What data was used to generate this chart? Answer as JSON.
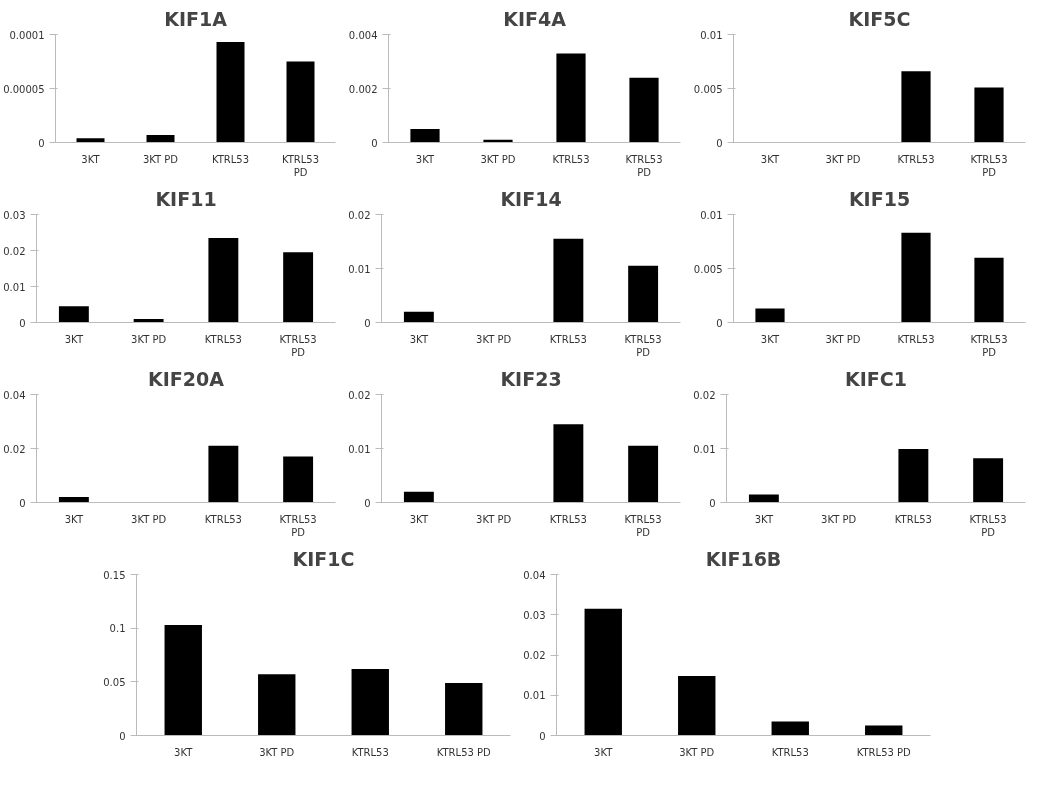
{
  "chart_data": [
    {
      "type": "bar",
      "title": "KIF1A",
      "categories": [
        "3KT",
        "3KT PD",
        "KTRL53",
        "KTRL53 PD"
      ],
      "values": [
        4e-06,
        7e-06,
        9.3e-05,
        7.5e-05
      ],
      "color": "#000000",
      "ylim": [
        0,
        0.0001
      ],
      "yticks": [
        0,
        {
          "value": 5e-05,
          "label": "0.00005"
        },
        0.0001
      ]
    },
    {
      "type": "bar",
      "title": "KIF4A",
      "categories": [
        "3KT",
        "3KT PD",
        "KTRL53",
        "KTRL53 PD"
      ],
      "values": [
        0.0005,
        0.0001,
        0.0033,
        0.0024
      ],
      "color": "#000000",
      "ylim": [
        0,
        0.004
      ],
      "yticks": [
        0,
        0.002,
        0.004
      ]
    },
    {
      "type": "bar",
      "title": "KIF5C",
      "categories": [
        "3KT",
        "3KT PD",
        "KTRL53",
        "KTRL53 PD"
      ],
      "values": [
        0,
        0,
        0.0066,
        0.0051
      ],
      "color": "#000000",
      "ylim": [
        0,
        0.01
      ],
      "yticks": [
        0,
        0.005,
        0.01
      ]
    },
    {
      "type": "bar",
      "title": "KIF11",
      "categories": [
        "3KT",
        "3KT PD",
        "KTRL53",
        "KTRL53 PD"
      ],
      "values": [
        0.0045,
        0.001,
        0.0235,
        0.0195
      ],
      "color": "#000000",
      "ylim": [
        0,
        0.03
      ],
      "yticks": [
        0,
        0.01,
        0.02,
        0.03
      ]
    },
    {
      "type": "bar",
      "title": "KIF14",
      "categories": [
        "3KT",
        "3KT PD",
        "KTRL53",
        "KTRL53 PD"
      ],
      "values": [
        0.002,
        0,
        0.0155,
        0.0105
      ],
      "color": "#000000",
      "ylim": [
        0,
        0.02
      ],
      "yticks": [
        0,
        0.01,
        0.02
      ]
    },
    {
      "type": "bar",
      "title": "KIF15",
      "categories": [
        "3KT",
        "3KT PD",
        "KTRL53",
        "KTRL53 PD"
      ],
      "values": [
        0.0013,
        0,
        0.0083,
        0.006
      ],
      "color": "#000000",
      "ylim": [
        0,
        0.01
      ],
      "yticks": [
        0,
        0.005,
        0.01
      ]
    },
    {
      "type": "bar",
      "title": "KIF20A",
      "categories": [
        "3KT",
        "3KT PD",
        "KTRL53",
        "KTRL53 PD"
      ],
      "values": [
        0.002,
        0,
        0.021,
        0.017
      ],
      "color": "#000000",
      "ylim": [
        0,
        0.04
      ],
      "yticks": [
        0,
        0.02,
        0.04
      ]
    },
    {
      "type": "bar",
      "title": "KIF23",
      "categories": [
        "3KT",
        "3KT PD",
        "KTRL53",
        "KTRL53 PD"
      ],
      "values": [
        0.002,
        0,
        0.0145,
        0.0105
      ],
      "color": "#000000",
      "ylim": [
        0,
        0.02
      ],
      "yticks": [
        0,
        0.01,
        0.02
      ]
    },
    {
      "type": "bar",
      "title": "KIFC1",
      "categories": [
        "3KT",
        "3KT PD",
        "KTRL53",
        "KTRL53 PD"
      ],
      "values": [
        0.0015,
        0,
        0.0099,
        0.0082
      ],
      "color": "#000000",
      "ylim": [
        0,
        0.02
      ],
      "yticks": [
        0,
        0.01,
        0.02
      ]
    },
    {
      "type": "bar",
      "title": "KIF1C",
      "categories": [
        "3KT",
        "3KT PD",
        "KTRL53",
        "KTRL53 PD"
      ],
      "values": [
        0.103,
        0.057,
        0.062,
        0.049
      ],
      "color": "#000000",
      "ylim": [
        0,
        0.15
      ],
      "yticks": [
        0,
        0.05,
        0.1,
        0.15
      ]
    },
    {
      "type": "bar",
      "title": "KIF16B",
      "categories": [
        "3KT",
        "3KT PD",
        "KTRL53",
        "KTRL53 PD"
      ],
      "values": [
        0.0315,
        0.0148,
        0.0035,
        0.0025
      ],
      "color": "#000000",
      "ylim": [
        0,
        0.04
      ],
      "yticks": [
        0,
        0.01,
        0.02,
        0.03,
        0.04
      ]
    }
  ]
}
